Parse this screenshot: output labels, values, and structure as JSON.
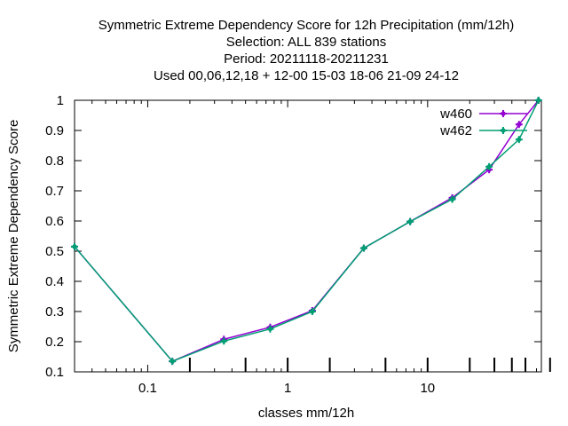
{
  "chart_data": {
    "type": "line",
    "title_lines": [
      "Symmetric Extreme Dependency Score  for 12h Precipitation (mm/12h)",
      "Selection: ALL    839 stations",
      "Period: 20211118-20211231",
      "Used  00,06,12,18  + 12-00 15-03 18-06 21-09 24-12"
    ],
    "xlabel": "classes mm/12h",
    "ylabel": "Symmetric Extreme Dependency Score",
    "x_scale": "log",
    "xlim": [
      0.03,
      65
    ],
    "ylim": [
      0.1,
      1.0
    ],
    "x_tick_labels": [
      "0.1",
      "1",
      "10"
    ],
    "x_ticks": [
      0.1,
      1,
      10
    ],
    "y_ticks": [
      0.1,
      0.2,
      0.3,
      0.4,
      0.5,
      0.6,
      0.7,
      0.8,
      0.9,
      1.0
    ],
    "y_tick_labels": [
      "0.1",
      "0.2",
      "0.3",
      "0.4",
      "0.5",
      "0.6",
      "0.7",
      "0.8",
      "0.9",
      "1"
    ],
    "class_marks": [
      0.2,
      0.5,
      1,
      2,
      5,
      10,
      20,
      30,
      40,
      50,
      75
    ],
    "grid": false,
    "legend_position": "top-right",
    "series": [
      {
        "name": "w460",
        "color": "#9400d3",
        "marker": "plus",
        "x": [
          0.03,
          0.15,
          0.35,
          0.75,
          1.5,
          3.5,
          7.5,
          15,
          27.5,
          45,
          62
        ],
        "y": [
          0.515,
          0.135,
          0.208,
          0.248,
          0.303,
          0.51,
          0.598,
          0.677,
          0.77,
          0.92,
          1.0
        ]
      },
      {
        "name": "w462",
        "color": "#009e73",
        "marker": "plus",
        "x": [
          0.03,
          0.15,
          0.35,
          0.75,
          1.5,
          3.5,
          7.5,
          15,
          27.5,
          45,
          62
        ],
        "y": [
          0.515,
          0.135,
          0.202,
          0.242,
          0.3,
          0.51,
          0.598,
          0.672,
          0.78,
          0.87,
          1.0
        ]
      }
    ]
  }
}
